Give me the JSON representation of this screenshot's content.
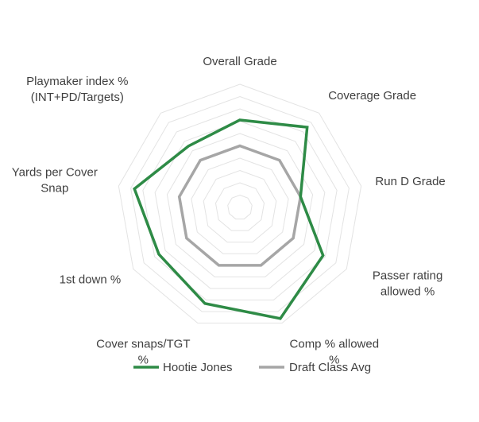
{
  "chart_data": {
    "type": "radar",
    "title": "",
    "axes": [
      [
        "Overall Grade"
      ],
      [
        "Coverage Grade"
      ],
      [
        "Run D Grade"
      ],
      [
        "Passer rating",
        "allowed %"
      ],
      [
        "Comp % allowed",
        "%"
      ],
      [
        "Cover snaps/TGT",
        "%"
      ],
      [
        "1st down %"
      ],
      [
        "Yards per Cover",
        "Snap"
      ],
      [
        "Playmaker index %",
        "(INT+PD/Targets)"
      ]
    ],
    "rlim": [
      0,
      100
    ],
    "grid_rings": 10,
    "grid": true,
    "legend_position": "bottom",
    "series": [
      {
        "name": "Hootie Jones",
        "color": "#2e8b46",
        "values": [
          71,
          85,
          50,
          78,
          96,
          83,
          76,
          87,
          65
        ]
      },
      {
        "name": "Draft Class Avg",
        "color": "#a6a6a6",
        "values": [
          50,
          50,
          50,
          50,
          50,
          50,
          50,
          50,
          50
        ]
      }
    ]
  },
  "colors": {
    "grid": "#e3e3e3",
    "text": "#404040"
  }
}
